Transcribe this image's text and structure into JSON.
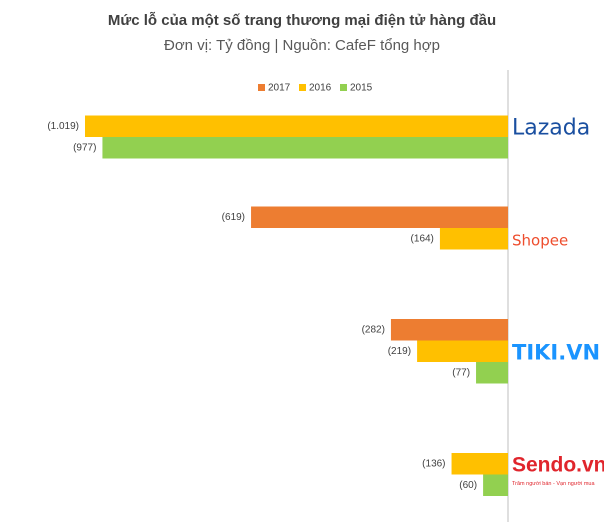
{
  "chart_data": {
    "type": "bar",
    "orientation": "horizontal",
    "title": "Mức lỗ của một số trang thương mại điện tử hàng đầu",
    "subtitle": "Đơn vị: Tỷ đồng | Nguồn: CafeF tổng hợp",
    "categories": [
      "Lazada",
      "Shopee",
      "TIKI.VN",
      "Sendo.vn"
    ],
    "category_note": "Trăm người bán - Vạn người mua",
    "series": [
      {
        "name": "2017",
        "color": "#ED7D31",
        "values": [
          null,
          -619,
          -282,
          null
        ],
        "value_labels": [
          null,
          "(619)",
          "(282)",
          null
        ]
      },
      {
        "name": "2016",
        "color": "#FFC000",
        "values": [
          -1019,
          -164,
          -219,
          -136
        ],
        "value_labels": [
          "(1.019)",
          "(164)",
          "(219)",
          "(136)"
        ]
      },
      {
        "name": "2015",
        "color": "#92D050",
        "values": [
          -977,
          null,
          -77,
          -60
        ],
        "value_labels": [
          "(977)",
          null,
          "(77)",
          "(60)"
        ]
      }
    ]
  }
}
